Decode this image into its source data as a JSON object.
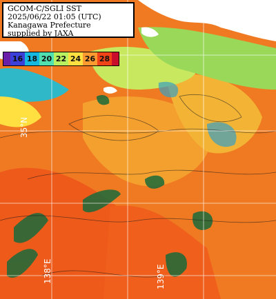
{
  "info": {
    "line1": "GCOM-C/SGLI SST",
    "line2": "2025/06/22 01:05 (UTC)",
    "line3": "Kanagawa Prefecture",
    "line4": "supplied by JAXA"
  },
  "legend": {
    "labels": [
      "16",
      "18",
      "20",
      "22",
      "24",
      "26",
      "28"
    ],
    "colors": [
      "#3a40d8",
      "#17b8e0",
      "#50e0b0",
      "#b8f060",
      "#ffe040",
      "#ff9a30",
      "#f04418"
    ],
    "cap_low": "#6a1fa8",
    "cap_high": "#c80e2a"
  },
  "grid_labels": {
    "lon_left": "138°E",
    "lon_right": "139°E",
    "lat_upper": "35°N"
  },
  "colors": {
    "land": "#ffffff",
    "sea_warm": "#f07a22",
    "sea_cool": "#f6b23a",
    "coastal_green": "#9ad85a",
    "coastal_teal": "#2fb8c8"
  }
}
